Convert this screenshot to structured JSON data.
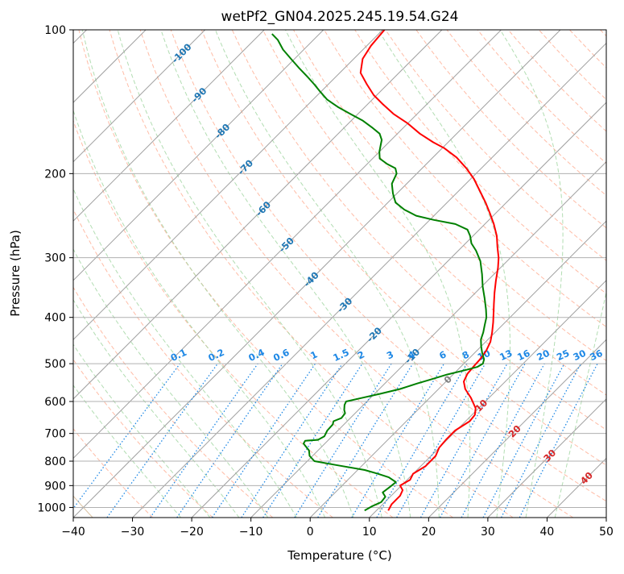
{
  "chart_data": {
    "type": "line",
    "title": "wetPf2_GN04.2025.245.19.54.G24",
    "xlabel": "Temperature (°C)",
    "ylabel": "Pressure (hPa)",
    "xlim": [
      -40,
      50
    ],
    "ylim": [
      1050,
      100
    ],
    "yscale": "log",
    "skew": true,
    "grid": true,
    "x_ticks": [
      -40,
      -30,
      -20,
      -10,
      0,
      10,
      20,
      30,
      40,
      50
    ],
    "y_ticks": [
      100,
      200,
      300,
      400,
      500,
      600,
      700,
      800,
      900,
      1000
    ],
    "isotherm_labels": [
      "-100",
      "-90",
      "-80",
      "-70",
      "-60",
      "-50",
      "-40",
      "-30",
      "-20",
      "-10",
      "0",
      "10",
      "20",
      "30",
      "40"
    ],
    "mixing_ratio_labels": [
      "0.1",
      "0.2",
      "0.4",
      "0.6",
      "1",
      "1.5",
      "2",
      "3",
      "4",
      "6",
      "8",
      "10",
      "13",
      "16",
      "20",
      "25",
      "30",
      "36"
    ],
    "colors": {
      "temperature": "#ff0000",
      "dewpoint": "#008000",
      "isotherm_label": "#1f77b4",
      "isotherm_label_warm": "#d62728",
      "isotherm_label_zero": "#7f7f7f",
      "mixing_ratio": "#1e88e5",
      "dry_adiabat": "#ff9f80",
      "moist_adiabat": "#9fd49f",
      "isotherm_line": "#a0a0a0",
      "grid": "#b0b0b0",
      "tan_curve": "#d2b48c"
    },
    "series": [
      {
        "key": "temperature",
        "points": [
          [
            12.0,
            1015
          ],
          [
            11.5,
            985
          ],
          [
            11.5,
            945
          ],
          [
            11.0,
            920
          ],
          [
            9.8,
            900
          ],
          [
            10.5,
            875
          ],
          [
            10.0,
            850
          ],
          [
            10.8,
            820
          ],
          [
            10.8,
            780
          ],
          [
            10.0,
            750
          ],
          [
            9.8,
            720
          ],
          [
            9.8,
            690
          ],
          [
            10.7,
            660
          ],
          [
            10.5,
            640
          ],
          [
            9.5,
            620
          ],
          [
            7.0,
            590
          ],
          [
            4.5,
            565
          ],
          [
            3.0,
            545
          ],
          [
            2.3,
            525
          ],
          [
            2.1,
            505
          ],
          [
            2.0,
            490
          ],
          [
            1.6,
            470
          ],
          [
            0.8,
            450
          ],
          [
            -0.5,
            430
          ],
          [
            -2.0,
            410
          ],
          [
            -3.5,
            392
          ],
          [
            -5.0,
            375
          ],
          [
            -6.8,
            355
          ],
          [
            -8.6,
            335
          ],
          [
            -10.4,
            315
          ],
          [
            -12.0,
            300
          ],
          [
            -14.0,
            285
          ],
          [
            -16.0,
            270
          ],
          [
            -18.5,
            255
          ],
          [
            -21.0,
            242
          ],
          [
            -23.5,
            230
          ],
          [
            -26.3,
            218
          ],
          [
            -29.5,
            205
          ],
          [
            -32.5,
            195
          ],
          [
            -36.0,
            185
          ],
          [
            -39.6,
            177
          ],
          [
            -42.5,
            172
          ],
          [
            -46.2,
            165
          ],
          [
            -50.0,
            157
          ],
          [
            -54.0,
            150
          ],
          [
            -57.5,
            143
          ],
          [
            -60.5,
            137
          ],
          [
            -63.5,
            130
          ],
          [
            -66.5,
            123
          ],
          [
            -68.5,
            115
          ],
          [
            -69.3,
            108
          ],
          [
            -69.7,
            100
          ]
        ]
      },
      {
        "key": "dewpoint",
        "points": [
          [
            8.0,
            1015
          ],
          [
            8.5,
            995
          ],
          [
            9.4,
            975
          ],
          [
            9.2,
            950
          ],
          [
            8.0,
            930
          ],
          [
            8.3,
            905
          ],
          [
            8.5,
            885
          ],
          [
            6.5,
            865
          ],
          [
            4.0,
            850
          ],
          [
            1.2,
            835
          ],
          [
            -4.5,
            815
          ],
          [
            -8.8,
            800
          ],
          [
            -10.5,
            780
          ],
          [
            -11.5,
            760
          ],
          [
            -13.6,
            735
          ],
          [
            -13.8,
            725
          ],
          [
            -11.8,
            722
          ],
          [
            -11.3,
            710
          ],
          [
            -11.8,
            690
          ],
          [
            -11.9,
            670
          ],
          [
            -12.3,
            660
          ],
          [
            -11.5,
            650
          ],
          [
            -11.7,
            635
          ],
          [
            -12.4,
            625
          ],
          [
            -13.2,
            610
          ],
          [
            -13.5,
            600
          ],
          [
            -11.5,
            590
          ],
          [
            -9.0,
            578
          ],
          [
            -6.5,
            565
          ],
          [
            -4.5,
            550
          ],
          [
            -3.0,
            540
          ],
          [
            -1.0,
            527
          ],
          [
            1.5,
            515
          ],
          [
            2.8,
            508
          ],
          [
            3.2,
            500
          ],
          [
            2.7,
            490
          ],
          [
            1.3,
            475
          ],
          [
            0.0,
            460
          ],
          [
            -1.2,
            445
          ],
          [
            -2.0,
            430
          ],
          [
            -3.0,
            415
          ],
          [
            -4.0,
            400
          ],
          [
            -5.4,
            385
          ],
          [
            -7.5,
            365
          ],
          [
            -9.8,
            345
          ],
          [
            -12.0,
            325
          ],
          [
            -14.5,
            305
          ],
          [
            -17.0,
            290
          ],
          [
            -19.0,
            280
          ],
          [
            -20.5,
            270
          ],
          [
            -22.0,
            262
          ],
          [
            -25.0,
            255
          ],
          [
            -29.3,
            250
          ],
          [
            -33.0,
            245
          ],
          [
            -36.0,
            238
          ],
          [
            -38.7,
            230
          ],
          [
            -40.7,
            220
          ],
          [
            -42.5,
            210
          ],
          [
            -43.4,
            200
          ],
          [
            -44.5,
            195
          ],
          [
            -46.6,
            191
          ],
          [
            -48.8,
            186
          ],
          [
            -50.0,
            180
          ],
          [
            -50.8,
            175
          ],
          [
            -51.6,
            170
          ],
          [
            -53.0,
            165
          ],
          [
            -55.4,
            160
          ],
          [
            -58.0,
            155
          ],
          [
            -61.3,
            150
          ],
          [
            -64.6,
            145
          ],
          [
            -67.6,
            140
          ],
          [
            -70.0,
            135
          ],
          [
            -72.4,
            130
          ],
          [
            -75.0,
            125
          ],
          [
            -77.8,
            120
          ],
          [
            -80.6,
            115
          ],
          [
            -83.5,
            110
          ],
          [
            -86.0,
            105
          ],
          [
            -88.0,
            102
          ]
        ]
      }
    ]
  }
}
